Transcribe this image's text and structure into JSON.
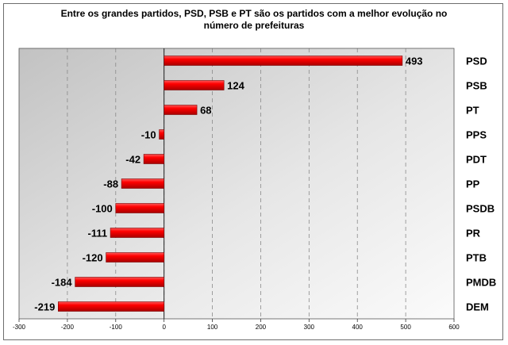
{
  "chart_data": {
    "type": "bar",
    "orientation": "horizontal",
    "title_lines": [
      "Entre os grandes partidos, PSD, PSB e PT são os partidos com a melhor evolução no",
      "número de prefeituras"
    ],
    "categories": [
      "PSD",
      "PSB",
      "PT",
      "PPS",
      "PDT",
      "PP",
      "PSDB",
      "PR",
      "PTB",
      "PMDB",
      "DEM"
    ],
    "values": [
      493,
      124,
      68,
      -10,
      -42,
      -88,
      -100,
      -111,
      -120,
      -184,
      -219
    ],
    "value_labels": [
      "493",
      "124",
      "68",
      "-10",
      "-42",
      "-88",
      "-100",
      "-111",
      "-120",
      "-184",
      "-219"
    ],
    "xlim": [
      -300,
      600
    ],
    "x_ticks": [
      -300,
      -200,
      -100,
      0,
      100,
      200,
      300,
      400,
      500,
      600
    ],
    "x_tick_labels": [
      "-300",
      "-200",
      "-100",
      "0",
      "100",
      "200",
      "300",
      "400",
      "500",
      "600"
    ],
    "grid": "vertical-dashed",
    "bar_color": "#e00000",
    "legend": "none"
  }
}
